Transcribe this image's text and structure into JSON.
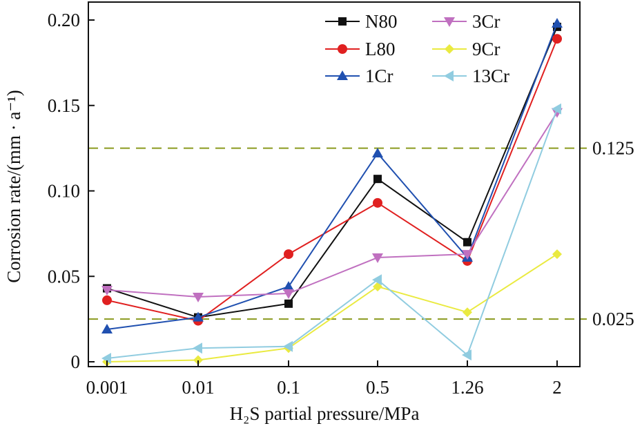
{
  "chart_data": {
    "type": "line",
    "xlabel": "H₂S partial pressure/MPa",
    "ylabel": "Corrosion rate/(mm · a⁻¹)",
    "categories": [
      "0.001",
      "0.01",
      "0.1",
      "0.5",
      "1.26",
      "2"
    ],
    "ylim": [
      0,
      0.21
    ],
    "yticks": [
      0,
      0.05,
      0.1,
      0.15,
      0.2
    ],
    "ytick_labels": [
      "0",
      "0.05",
      "0.10",
      "0.15",
      "0.20"
    ],
    "reference_lines": [
      {
        "value": 0.125,
        "label": "0.125",
        "color": "#8a9a1e",
        "style": "dashed"
      },
      {
        "value": 0.025,
        "label": "0.025",
        "color": "#8a9a1e",
        "style": "dashed"
      }
    ],
    "legend_position": "top-right",
    "series": [
      {
        "name": "N80",
        "color": "#111111",
        "marker": "square",
        "values": [
          0.043,
          0.026,
          0.034,
          0.107,
          0.07,
          0.196
        ]
      },
      {
        "name": "L80",
        "color": "#e02020",
        "marker": "circle",
        "values": [
          0.036,
          0.024,
          0.063,
          0.093,
          0.059,
          0.189
        ]
      },
      {
        "name": "1Cr",
        "color": "#2050b0",
        "marker": "triangle-up",
        "values": [
          0.019,
          0.026,
          0.044,
          0.122,
          0.061,
          0.198
        ]
      },
      {
        "name": "3Cr",
        "color": "#c070c0",
        "marker": "triangle-down",
        "values": [
          0.042,
          0.038,
          0.04,
          0.061,
          0.063,
          0.146
        ]
      },
      {
        "name": "9Cr",
        "color": "#eaea40",
        "marker": "diamond",
        "values": [
          0.0,
          0.001,
          0.008,
          0.044,
          0.029,
          0.063
        ]
      },
      {
        "name": "13Cr",
        "color": "#90cce0",
        "marker": "triangle-left",
        "values": [
          0.002,
          0.008,
          0.009,
          0.048,
          0.004,
          0.148
        ]
      }
    ]
  }
}
